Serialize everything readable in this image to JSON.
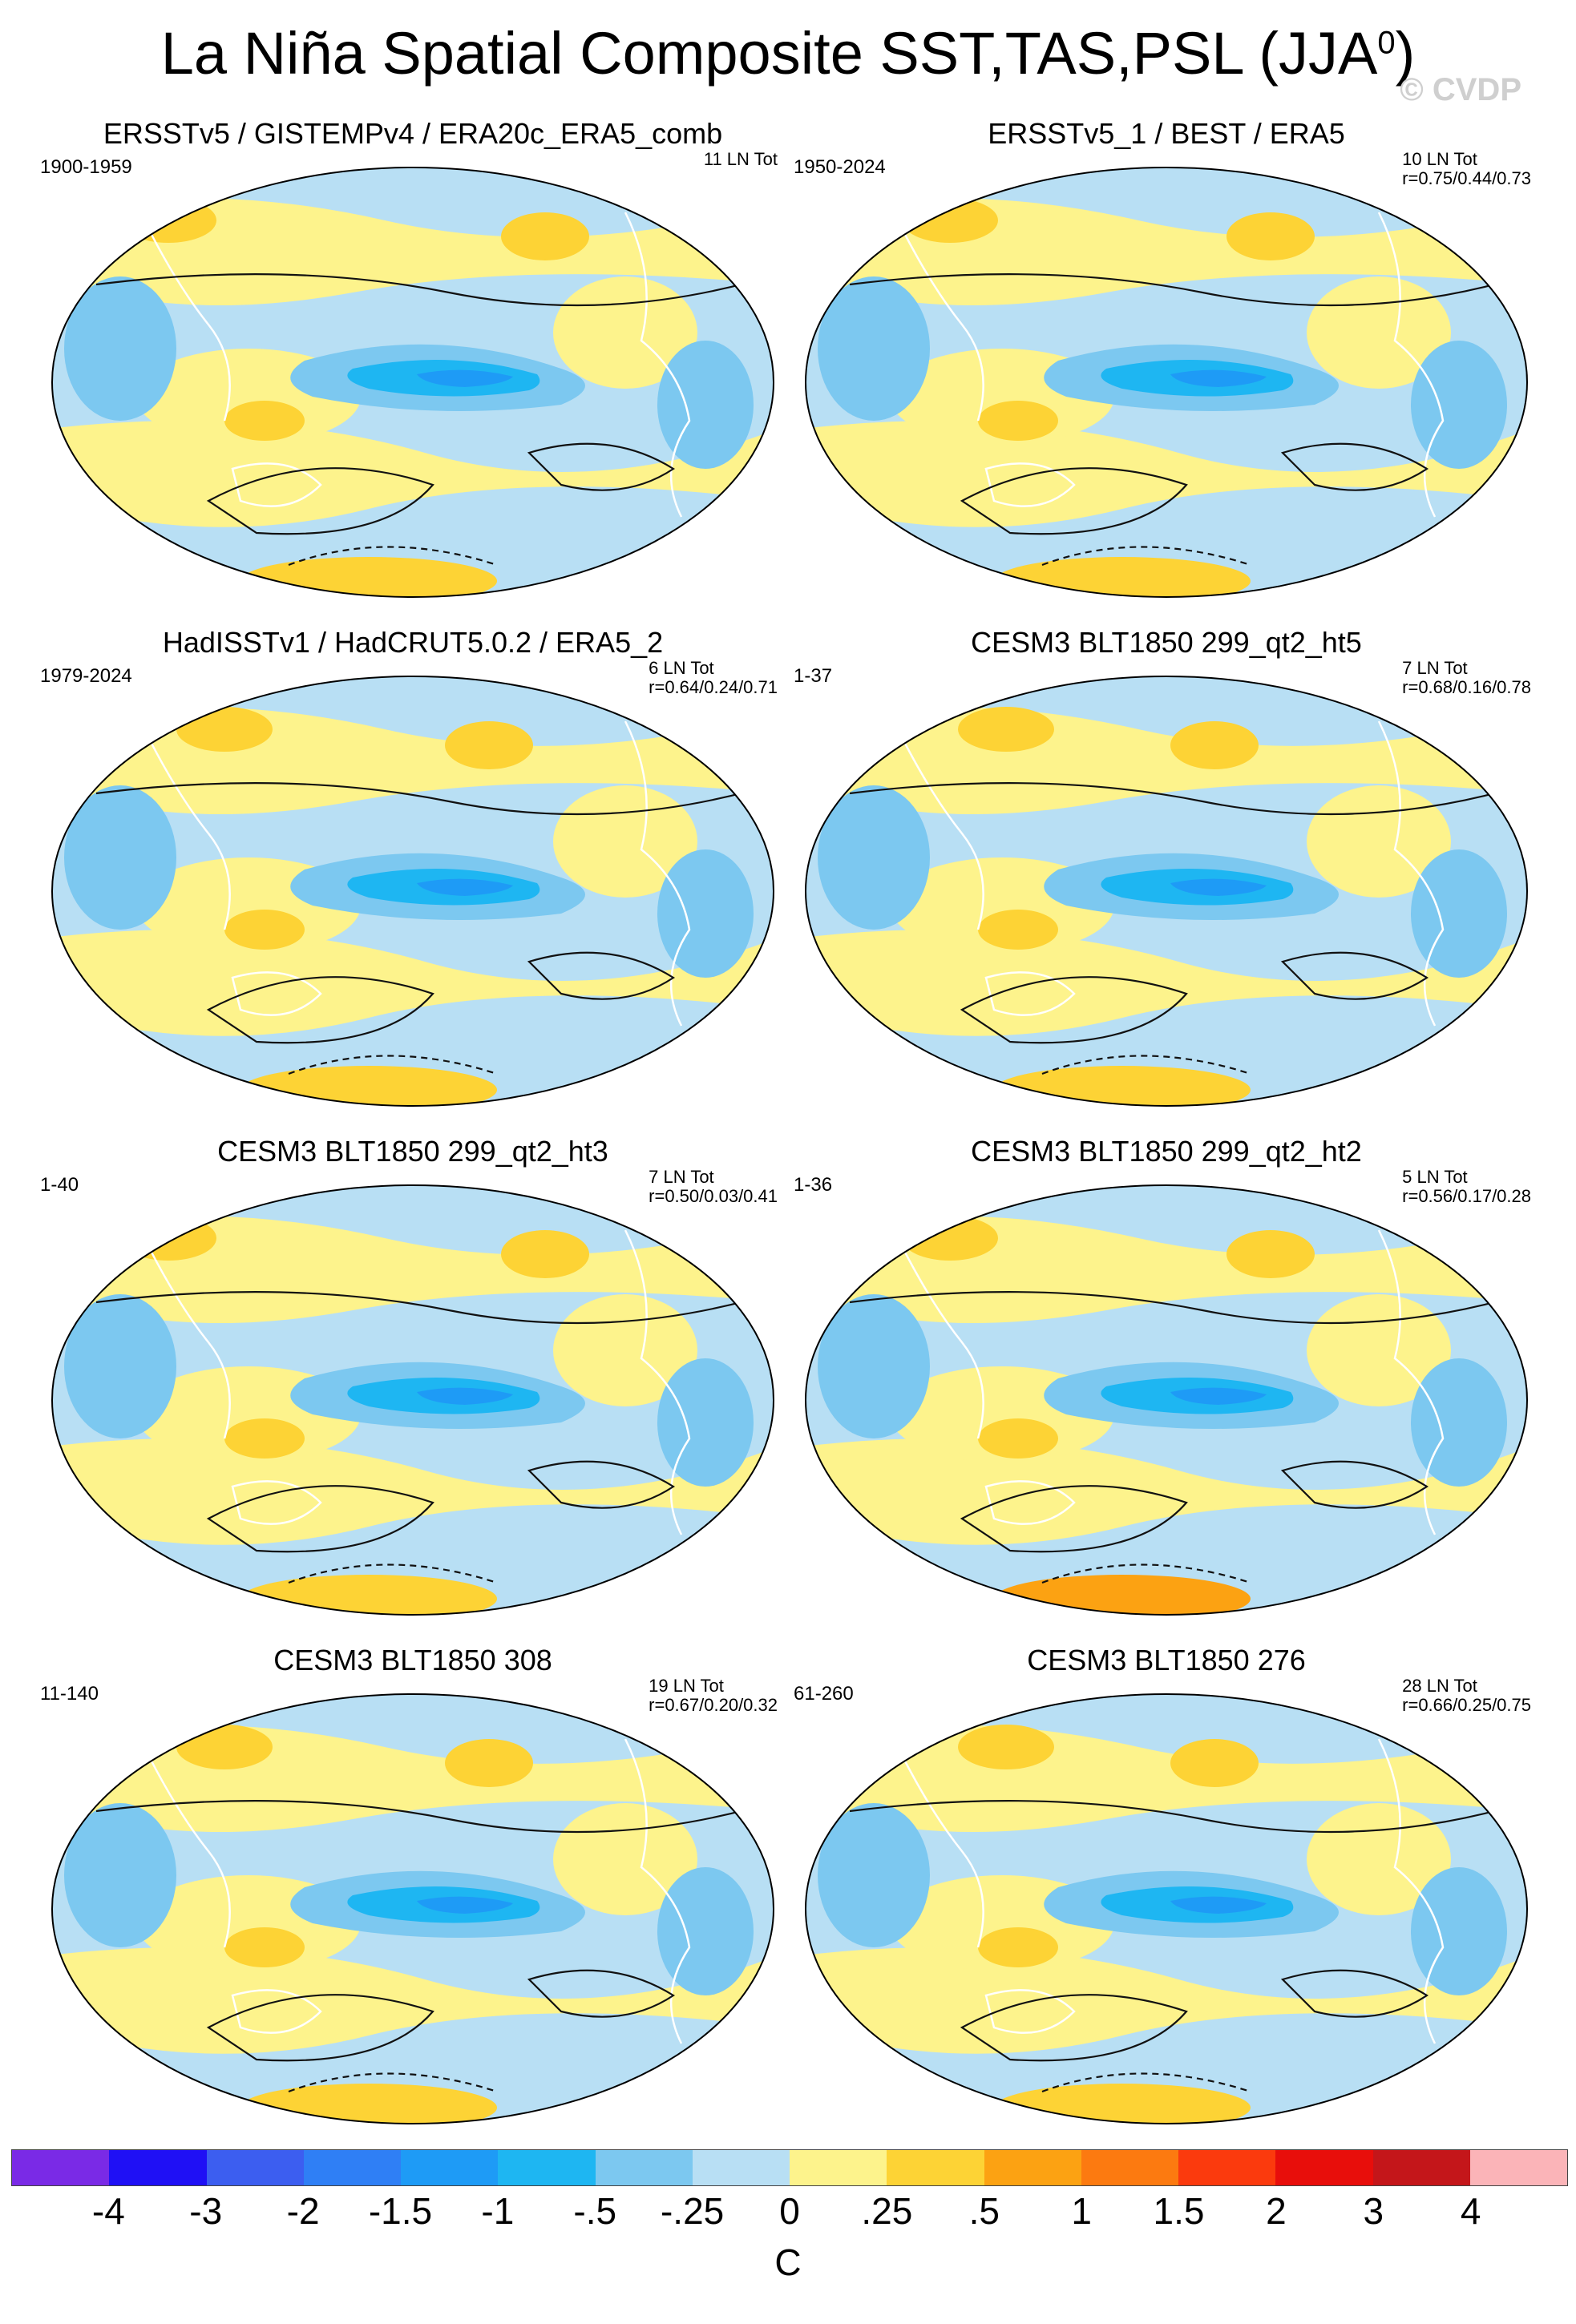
{
  "title": "La Niña Spatial Composite SST,TAS,PSL (JJA",
  "title_sup": "0",
  "title_close": ")",
  "watermark": "© CVDP",
  "panels": [
    {
      "title": "ERSSTv5 / GISTEMPv4 / ERA20c_ERA5_comb",
      "years": "1900-1959",
      "count": "11 LN Tot",
      "corr": ""
    },
    {
      "title": "ERSSTv5_1 / BEST / ERA5",
      "years": "1950-2024",
      "count": "10 LN Tot",
      "corr": "r=0.75/0.44/0.73"
    },
    {
      "title": "HadISSTv1 / HadCRUT5.0.2 / ERA5_2",
      "years": "1979-2024",
      "count": "6 LN Tot",
      "corr": "r=0.64/0.24/0.71"
    },
    {
      "title": "CESM3 BLT1850 299_qt2_ht5",
      "years": "1-37",
      "count": "7 LN Tot",
      "corr": "r=0.68/0.16/0.78"
    },
    {
      "title": "CESM3 BLT1850 299_qt2_ht3",
      "years": "1-40",
      "count": "7 LN Tot",
      "corr": "r=0.50/0.03/0.41"
    },
    {
      "title": "CESM3 BLT1850 299_qt2_ht2",
      "years": "1-36",
      "count": "5 LN Tot",
      "corr": "r=0.56/0.17/0.28"
    },
    {
      "title": "CESM3 BLT1850 308",
      "years": "11-140",
      "count": "19 LN Tot",
      "corr": "r=0.67/0.20/0.32"
    },
    {
      "title": "CESM3 BLT1850 276",
      "years": "61-260",
      "count": "28 LN Tot",
      "corr": "r=0.66/0.25/0.75"
    }
  ],
  "chart_data": {
    "type": "heatmap",
    "title": "La Niña Spatial Composite SST,TAS,PSL (JJA0)",
    "projection": "Robinson (global, Pacific-centered)",
    "fields": [
      "SST",
      "TAS",
      "PSL contours"
    ],
    "units": "C",
    "colorbar": {
      "levels": [
        "-4",
        "-3",
        "-2",
        "-1.5",
        "-1",
        "-.5",
        "-.25",
        "0",
        ".25",
        ".5",
        "1",
        "1.5",
        "2",
        "3",
        "4"
      ],
      "colors": [
        "#7a2ae6",
        "#1f10f5",
        "#3c5ef0",
        "#2f7ff5",
        "#1e9bf6",
        "#1eb6f2",
        "#7cc8f0",
        "#b8dff4",
        "#fdf38c",
        "#fdd335",
        "#fca212",
        "#fc7a10",
        "#fb3a0d",
        "#e80e0b",
        "#c4161a",
        "#fbb4b8"
      ],
      "label": "C"
    }
  },
  "colors": {
    "neutral_blue": "#b8dff4",
    "neutral_yellow": "#fdf38c",
    "land_outline": "#ffffff",
    "contour": "#111111"
  }
}
